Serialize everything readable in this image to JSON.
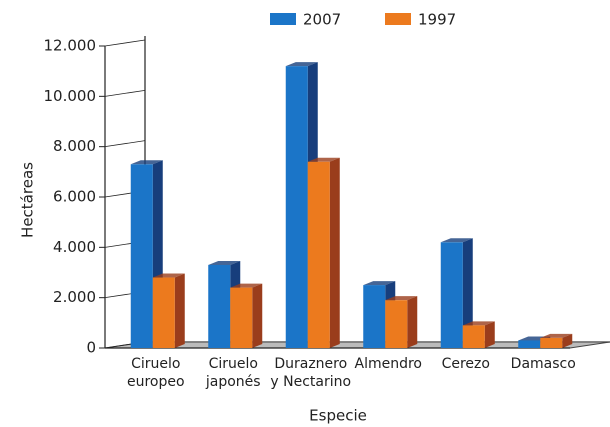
{
  "chart_data": {
    "type": "bar3d",
    "y_label": "Hectáreas",
    "x_label": "Especie",
    "categories": [
      "Ciruelo\neuropeo",
      "Ciruelo\njaponés",
      "Duraznero\ny Nectarino",
      "Almendro",
      "Cerezo",
      "Damasco"
    ],
    "series": [
      {
        "name": "2007",
        "color": "#1b75c8",
        "side_color": "#173e7c",
        "values": [
          7300,
          3300,
          11200,
          2500,
          4200,
          300
        ]
      },
      {
        "name": "1997",
        "color": "#ec7a1e",
        "side_color": "#9a3d1c",
        "values": [
          2800,
          2400,
          7400,
          1900,
          900,
          400
        ]
      }
    ],
    "ylim": [
      0,
      12000
    ],
    "yticks": [
      0,
      {
        "value": 2000,
        "label": "2.000"
      },
      {
        "value": 4000,
        "label": "4.000"
      },
      {
        "value": 6000,
        "label": "6.000"
      },
      {
        "value": 8000,
        "label": "8.000"
      },
      {
        "value": 10000,
        "label": "10.000"
      },
      {
        "value": 12000,
        "label": "12.000"
      }
    ]
  }
}
